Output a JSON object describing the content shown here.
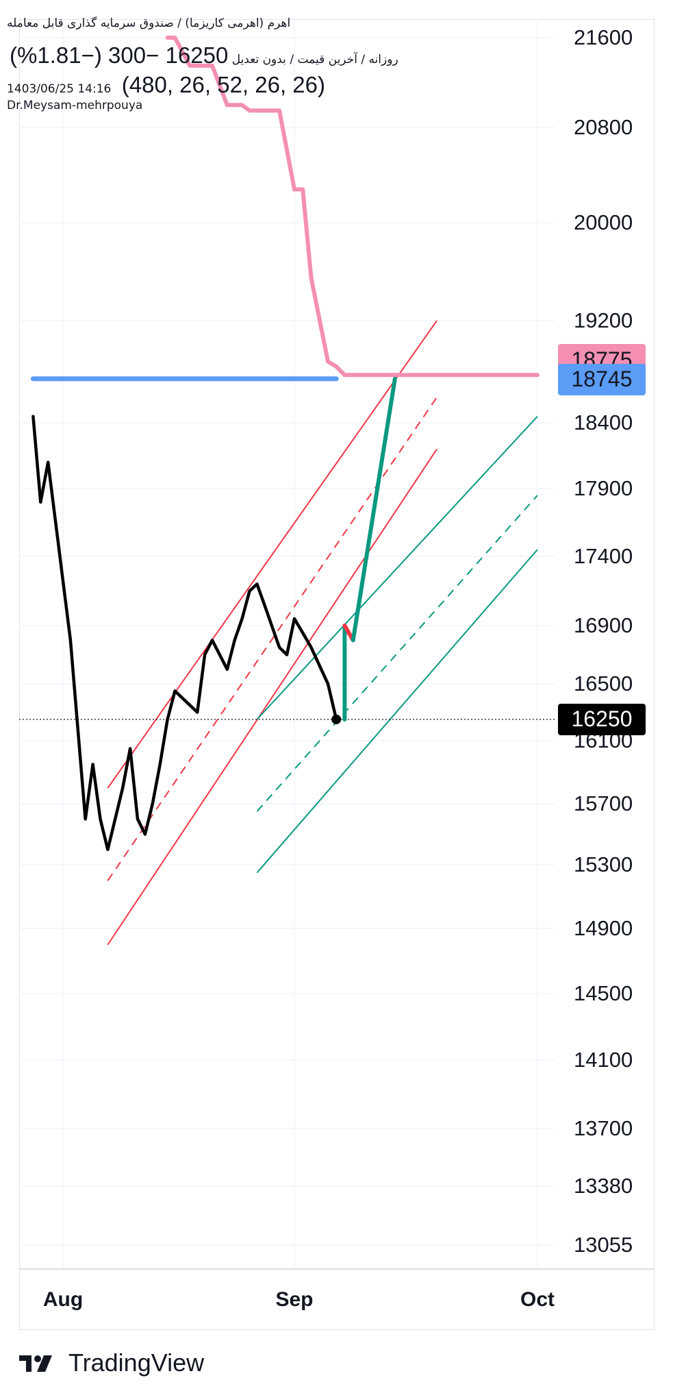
{
  "header": {
    "instrument": "اهرم (اهرمی کاریزما) / صندوق سرمایه گذاری قابل معامله",
    "interval_info": "روزانه / آخرین قیمت / بدون تعدیل",
    "quote": "16250  −300 (−1.81%)",
    "datetime": "1403/06/25 14:16",
    "indicator_values": "(480, 26, 52, 26, 26)",
    "author": "Dr.Meysam-mehrpouya"
  },
  "price_scale": {
    "ticks": [
      "21600",
      "20800",
      "20000",
      "19200",
      "18400",
      "17900",
      "17400",
      "16900",
      "16500",
      "16100",
      "15700",
      "15300",
      "14900",
      "14500",
      "14100",
      "13700",
      "13380",
      "13055"
    ]
  },
  "time_scale": {
    "ticks": [
      "Aug",
      "Sep",
      "Oct"
    ]
  },
  "price_labels": {
    "pink": "18775",
    "blue": "18745",
    "last": "16250"
  },
  "colors": {
    "price_line": "#000000",
    "pink_line": "#f48fb1",
    "blue_line": "#5b9cf6",
    "red_channel": "#f23645",
    "green_channel": "#089981",
    "projection": "#089981",
    "last_price_bg": "#000000"
  },
  "branding": {
    "logo": "tradingview-logo-icon",
    "name": "TradingView"
  },
  "chart_data": {
    "type": "line",
    "title": "",
    "xlabel": "",
    "ylabel": "",
    "ylim": [
      12800,
      21900
    ],
    "x_ticks": [
      "Aug",
      "Sep",
      "Oct"
    ],
    "series": [
      {
        "values": [
          {
            "d": "07-28",
            "y": 18450
          },
          {
            "d": "07-29",
            "y": 17800
          },
          {
            "d": "07-30",
            "y": 18100
          },
          {
            "d": "08-02",
            "y": 16800
          },
          {
            "d": "08-04",
            "y": 15600
          },
          {
            "d": "08-05",
            "y": 15950
          },
          {
            "d": "08-06",
            "y": 15600
          },
          {
            "d": "08-07",
            "y": 15400
          },
          {
            "d": "08-09",
            "y": 15800
          },
          {
            "d": "08-10",
            "y": 16050
          },
          {
            "d": "08-11",
            "y": 15600
          },
          {
            "d": "08-12",
            "y": 15500
          },
          {
            "d": "08-13",
            "y": 15700
          },
          {
            "d": "08-14",
            "y": 15950
          },
          {
            "d": "08-15",
            "y": 16250
          },
          {
            "d": "08-16",
            "y": 16450
          },
          {
            "d": "08-18",
            "y": 16350
          },
          {
            "d": "08-19",
            "y": 16300
          },
          {
            "d": "08-20",
            "y": 16700
          },
          {
            "d": "08-21",
            "y": 16800
          },
          {
            "d": "08-23",
            "y": 16600
          },
          {
            "d": "08-24",
            "y": 16800
          },
          {
            "d": "08-25",
            "y": 16950
          },
          {
            "d": "08-26",
            "y": 17150
          },
          {
            "d": "08-27",
            "y": 17200
          },
          {
            "d": "08-28",
            "y": 17050
          },
          {
            "d": "08-30",
            "y": 16750
          },
          {
            "d": "08-31",
            "y": 16700
          },
          {
            "d": "09-01",
            "y": 16950
          },
          {
            "d": "09-02",
            "y": 16850
          },
          {
            "d": "09-03",
            "y": 16750
          },
          {
            "d": "09-05",
            "y": 16500
          },
          {
            "d": "09-06",
            "y": 16250
          }
        ]
      },
      {
        "values": [
          {
            "d": "08-15",
            "y": 21600
          },
          {
            "d": "08-16",
            "y": 21600
          },
          {
            "d": "08-18",
            "y": 21350
          },
          {
            "d": "08-21",
            "y": 21350
          },
          {
            "d": "08-23",
            "y": 21000
          },
          {
            "d": "08-25",
            "y": 21000
          },
          {
            "d": "08-26",
            "y": 20950
          },
          {
            "d": "08-30",
            "y": 20950
          },
          {
            "d": "09-01",
            "y": 20280
          },
          {
            "d": "09-02",
            "y": 20280
          },
          {
            "d": "09-03",
            "y": 19550
          },
          {
            "d": "09-05",
            "y": 18880
          },
          {
            "d": "09-06",
            "y": 18840
          },
          {
            "d": "09-07",
            "y": 18775
          },
          {
            "d": "09-30",
            "y": 18775
          }
        ]
      },
      {
        "values": [
          {
            "d": "07-28",
            "y": 18745
          },
          {
            "d": "09-06",
            "y": 18745
          }
        ]
      },
      {
        "values": [
          {
            "d": "09-07",
            "y": 16250
          },
          {
            "d": "09-07",
            "y": 16900
          },
          {
            "d": "09-08",
            "y": 16800
          },
          {
            "d": "09-13",
            "y": 18745
          }
        ]
      }
    ],
    "channels": [
      {
        "color": "red",
        "style": "solid",
        "from": {
          "d": "08-07",
          "y": 15800
        },
        "to": {
          "d": "09-18",
          "y": 19200
        }
      },
      {
        "color": "red",
        "style": "dashed",
        "from": {
          "d": "08-07",
          "y": 15200
        },
        "to": {
          "d": "09-18",
          "y": 18600
        }
      },
      {
        "color": "red",
        "style": "solid",
        "from": {
          "d": "08-07",
          "y": 14800
        },
        "to": {
          "d": "09-18",
          "y": 18200
        }
      },
      {
        "color": "green",
        "style": "solid",
        "from": {
          "d": "08-27",
          "y": 16250
        },
        "to": {
          "d": "09-30",
          "y": 18450
        }
      },
      {
        "color": "green",
        "style": "dashed",
        "from": {
          "d": "08-27",
          "y": 15650
        },
        "to": {
          "d": "09-30",
          "y": 17850
        }
      },
      {
        "color": "green",
        "style": "solid",
        "from": {
          "d": "08-27",
          "y": 15250
        },
        "to": {
          "d": "09-30",
          "y": 17450
        }
      }
    ]
  }
}
